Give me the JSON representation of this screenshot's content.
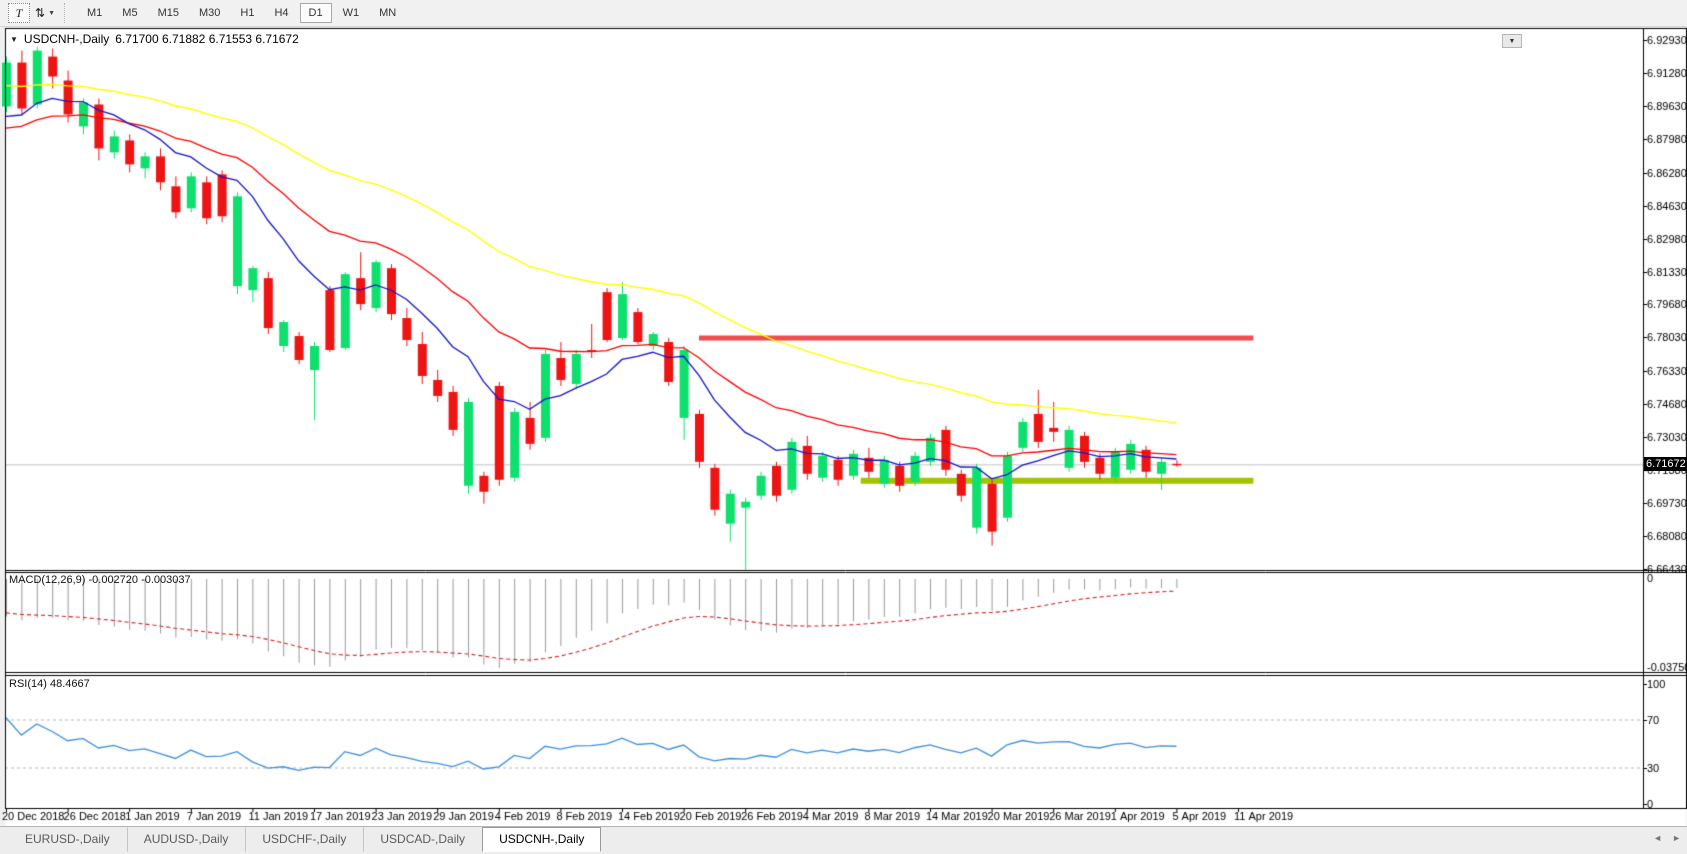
{
  "toolbar": {
    "text_tool_glyph": "T",
    "timeframes": [
      "M1",
      "M5",
      "M15",
      "M30",
      "H1",
      "H4",
      "D1",
      "W1",
      "MN"
    ],
    "active_timeframe": "D1"
  },
  "title": {
    "symbol": "USDCNH-,Daily",
    "ohlc": "6.71700 6.71882 6.71553 6.71672"
  },
  "chart": {
    "current_price": "6.71672",
    "price_axis": [
      "6.92930",
      "6.91280",
      "6.89630",
      "6.87980",
      "6.86280",
      "6.84630",
      "6.82980",
      "6.81330",
      "6.79680",
      "6.78030",
      "6.76330",
      "6.74680",
      "6.73030",
      "6.71380",
      "6.69730",
      "6.68080",
      "6.66430"
    ],
    "date_axis": [
      "20 Dec 2018",
      "26 Dec 2018",
      "1 Jan 2019",
      "7 Jan 2019",
      "11 Jan 2019",
      "17 Jan 2019",
      "23 Jan 2019",
      "29 Jan 2019",
      "4 Feb 2019",
      "8 Feb 2019",
      "14 Feb 2019",
      "20 Feb 2019",
      "26 Feb 2019",
      "4 Mar 2019",
      "8 Mar 2019",
      "14 Mar 2019",
      "20 Mar 2019",
      "26 Mar 2019",
      "1 Apr 2019",
      "5 Apr 2019",
      "11 Apr 2019"
    ],
    "colors": {
      "bull": "#0ee06e",
      "bear": "#ee1414",
      "ma_slow": "#ffff00",
      "ma_medium": "#ff0000",
      "ma_fast": "#1414cc",
      "resistance": "#f24b4b",
      "support": "#a4c400",
      "price_line": "#c4c4c4",
      "macd_hist": "#9a9a9a",
      "macd_signal": "#e02020",
      "rsi_line": "#3f8fe0",
      "level_dash": "#bbbbbb",
      "border": "#000000"
    },
    "levels": {
      "resistance": {
        "price": 6.78,
        "from_bar": 45,
        "to_bar": 81
      },
      "support": {
        "price": 6.7085,
        "from_bar": 55.5,
        "to_bar": 81
      }
    }
  },
  "macd_panel": {
    "label": "MACD(12,26,9)",
    "value_main": "-0.002720",
    "value_signal": "-0.003037",
    "axis_top": "0",
    "axis_bottom": "-0.037508"
  },
  "rsi_panel": {
    "label": "RSI(14)",
    "value": "48.4667",
    "axis": [
      "100",
      "70",
      "30",
      "0"
    ],
    "dashed_levels": [
      70,
      30
    ]
  },
  "tabs": [
    {
      "label": "EURUSD-,Daily",
      "active": false
    },
    {
      "label": "AUDUSD-,Daily",
      "active": false
    },
    {
      "label": "USDCHF-,Daily",
      "active": false
    },
    {
      "label": "USDCAD-,Daily",
      "active": false
    },
    {
      "label": "USDCNH-,Daily",
      "active": true
    }
  ],
  "tab_nav": {
    "left_arrow": "◄",
    "right_arrow": "►"
  },
  "chart_data": {
    "type": "candlestick",
    "symbol": "USDCNH-",
    "timeframe": "Daily",
    "title": "USDCNH-,Daily",
    "ylim": [
      6.6643,
      6.9293
    ],
    "label_every_bars": 4,
    "candles": [
      [
        6.896,
        6.921,
        6.893,
        6.918
      ],
      [
        6.918,
        6.924,
        6.892,
        6.895
      ],
      [
        6.897,
        6.926,
        6.895,
        6.924
      ],
      [
        6.921,
        6.925,
        6.905,
        6.911
      ],
      [
        6.909,
        6.914,
        6.888,
        6.892
      ],
      [
        6.886,
        6.9,
        6.882,
        6.898
      ],
      [
        6.897,
        6.9,
        6.869,
        6.875
      ],
      [
        6.873,
        6.884,
        6.87,
        6.881
      ],
      [
        6.879,
        6.882,
        6.863,
        6.867
      ],
      [
        6.865,
        6.873,
        6.86,
        6.871
      ],
      [
        6.871,
        6.875,
        6.854,
        6.858
      ],
      [
        6.856,
        6.861,
        6.84,
        6.843
      ],
      [
        6.845,
        6.863,
        6.843,
        6.861
      ],
      [
        6.858,
        6.861,
        6.837,
        6.84
      ],
      [
        6.862,
        6.864,
        6.838,
        6.841
      ],
      [
        6.806,
        6.853,
        6.802,
        6.851
      ],
      [
        6.804,
        6.816,
        6.798,
        6.815
      ],
      [
        6.81,
        6.813,
        6.782,
        6.785
      ],
      [
        6.776,
        6.789,
        6.773,
        6.788
      ],
      [
        6.781,
        6.783,
        6.767,
        6.769
      ],
      [
        6.764,
        6.778,
        6.739,
        6.776
      ],
      [
        6.804,
        6.806,
        6.773,
        6.774
      ],
      [
        6.775,
        6.813,
        6.774,
        6.812
      ],
      [
        6.81,
        6.823,
        6.794,
        6.797
      ],
      [
        6.795,
        6.819,
        6.793,
        6.818
      ],
      [
        6.815,
        6.817,
        6.789,
        6.792
      ],
      [
        6.79,
        6.795,
        6.776,
        6.779
      ],
      [
        6.777,
        6.783,
        6.757,
        6.761
      ],
      [
        6.759,
        6.764,
        6.748,
        6.751
      ],
      [
        6.753,
        6.756,
        6.731,
        6.734
      ],
      [
        6.706,
        6.75,
        6.702,
        6.748
      ],
      [
        6.711,
        6.713,
        6.697,
        6.703
      ],
      [
        6.756,
        6.758,
        6.706,
        6.709
      ],
      [
        6.71,
        6.745,
        6.708,
        6.743
      ],
      [
        6.74,
        6.748,
        6.724,
        6.727
      ],
      [
        6.73,
        6.774,
        6.728,
        6.772
      ],
      [
        6.77,
        6.778,
        6.756,
        6.759
      ],
      [
        6.757,
        6.774,
        6.755,
        6.772
      ],
      [
        6.774,
        6.787,
        6.77,
        6.773
      ],
      [
        6.803,
        6.805,
        6.778,
        6.779
      ],
      [
        6.78,
        6.808,
        6.779,
        6.802
      ],
      [
        6.793,
        6.795,
        6.777,
        6.778
      ],
      [
        6.776,
        6.783,
        6.774,
        6.782
      ],
      [
        6.778,
        6.78,
        6.756,
        6.758
      ],
      [
        6.74,
        6.776,
        6.729,
        6.774
      ],
      [
        6.742,
        6.744,
        6.715,
        6.718
      ],
      [
        6.715,
        6.717,
        6.691,
        6.694
      ],
      [
        6.687,
        6.704,
        6.678,
        6.702
      ],
      [
        6.695,
        6.7,
        6.664,
        6.698
      ],
      [
        6.701,
        6.713,
        6.699,
        6.711
      ],
      [
        6.716,
        6.718,
        6.698,
        6.701
      ],
      [
        6.704,
        6.73,
        6.702,
        6.728
      ],
      [
        6.726,
        6.731,
        6.709,
        6.712
      ],
      [
        6.71,
        6.723,
        6.708,
        6.721
      ],
      [
        6.719,
        6.721,
        6.706,
        6.709
      ],
      [
        6.711,
        6.724,
        6.709,
        6.722
      ],
      [
        6.72,
        6.725,
        6.71,
        6.713
      ],
      [
        6.707,
        6.721,
        6.705,
        6.719
      ],
      [
        6.716,
        6.718,
        6.703,
        6.706
      ],
      [
        6.708,
        6.723,
        6.706,
        6.721
      ],
      [
        6.718,
        6.732,
        6.716,
        6.73
      ],
      [
        6.734,
        6.736,
        6.711,
        6.714
      ],
      [
        6.712,
        6.714,
        6.698,
        6.701
      ],
      [
        6.685,
        6.717,
        6.682,
        6.715
      ],
      [
        6.707,
        6.709,
        6.676,
        6.683
      ],
      [
        6.69,
        6.723,
        6.688,
        6.721
      ],
      [
        6.725,
        6.74,
        6.723,
        6.738
      ],
      [
        6.742,
        6.754,
        6.725,
        6.728
      ],
      [
        6.735,
        6.748,
        6.728,
        6.733
      ],
      [
        6.715,
        6.736,
        6.713,
        6.734
      ],
      [
        6.731,
        6.733,
        6.715,
        6.718
      ],
      [
        6.72,
        6.722,
        6.709,
        6.712
      ],
      [
        6.71,
        6.725,
        6.708,
        6.723
      ],
      [
        6.714,
        6.729,
        6.712,
        6.727
      ],
      [
        6.724,
        6.726,
        6.71,
        6.713
      ],
      [
        6.712,
        6.72,
        6.704,
        6.718
      ],
      [
        6.717,
        6.71882,
        6.71553,
        6.71672
      ]
    ],
    "moving_averages": [
      {
        "name": "slow-ma",
        "period": 45,
        "seed": 6.906
      },
      {
        "name": "medium-ma",
        "period": 22,
        "seed": 6.882
      },
      {
        "name": "fast-ma",
        "period": 10,
        "seed": 6.885
      }
    ],
    "indicators": {
      "macd": {
        "params": [
          12,
          26,
          9
        ],
        "last_main": -0.00272,
        "last_signal": -0.003037,
        "axis_min": -0.037508
      },
      "rsi": {
        "params": [
          14
        ],
        "last": 48.4667,
        "levels": [
          70,
          30
        ]
      }
    }
  }
}
